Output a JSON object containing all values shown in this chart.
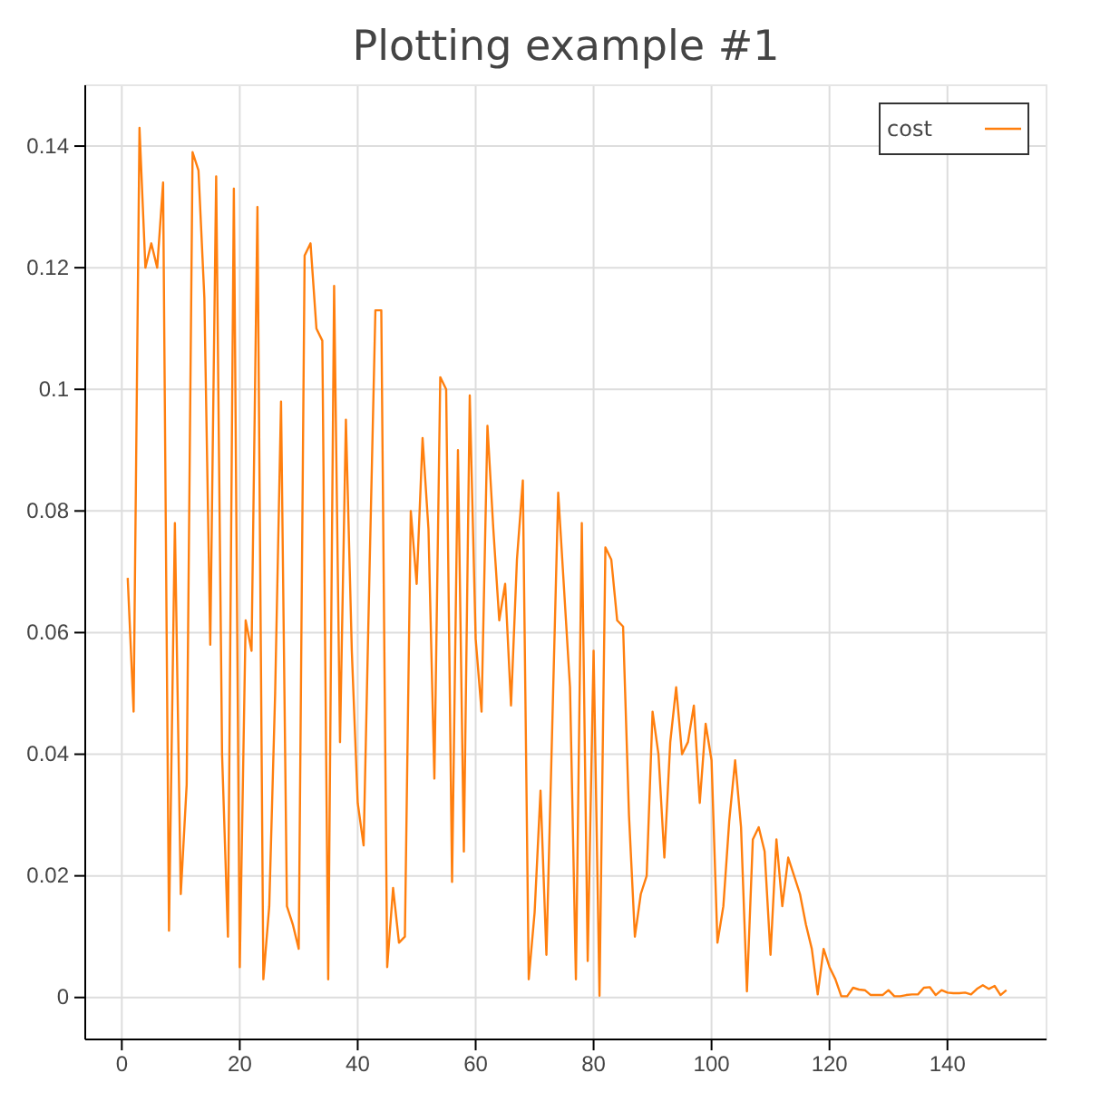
{
  "chart_data": {
    "type": "line",
    "title": "Plotting example #1",
    "x": [
      1,
      2,
      3,
      4,
      5,
      6,
      7,
      8,
      9,
      10,
      11,
      12,
      13,
      14,
      15,
      16,
      17,
      18,
      19,
      20,
      21,
      22,
      23,
      24,
      25,
      26,
      27,
      28,
      29,
      30,
      31,
      32,
      33,
      34,
      35,
      36,
      37,
      38,
      39,
      40,
      41,
      42,
      43,
      44,
      45,
      46,
      47,
      48,
      49,
      50,
      51,
      52,
      53,
      54,
      55,
      56,
      57,
      58,
      59,
      60,
      61,
      62,
      63,
      64,
      65,
      66,
      67,
      68,
      69,
      70,
      71,
      72,
      73,
      74,
      75,
      76,
      77,
      78,
      79,
      80,
      81,
      82,
      83,
      84,
      85,
      86,
      87,
      88,
      89,
      90,
      91,
      92,
      93,
      94,
      95,
      96,
      97,
      98,
      99,
      100,
      101,
      102,
      103,
      104,
      105,
      106,
      107,
      108,
      109,
      110,
      111,
      112,
      113,
      114,
      115,
      116,
      117,
      118,
      119,
      120,
      121,
      122,
      123,
      124,
      125,
      126,
      127,
      128,
      129,
      130,
      131,
      132,
      133,
      134,
      135,
      136,
      137,
      138,
      139,
      140,
      141,
      142,
      143,
      144,
      145,
      146,
      147,
      148,
      149,
      150
    ],
    "series": [
      {
        "name": "cost",
        "color": "#ff7f0e",
        "values": [
          0.069,
          0.047,
          0.143,
          0.12,
          0.124,
          0.12,
          0.134,
          0.011,
          0.078,
          0.017,
          0.035,
          0.139,
          0.136,
          0.115,
          0.058,
          0.135,
          0.04,
          0.01,
          0.133,
          0.005,
          0.062,
          0.057,
          0.13,
          0.003,
          0.015,
          0.05,
          0.098,
          0.015,
          0.012,
          0.008,
          0.122,
          0.124,
          0.11,
          0.108,
          0.003,
          0.117,
          0.042,
          0.095,
          0.057,
          0.032,
          0.025,
          0.07,
          0.113,
          0.113,
          0.005,
          0.018,
          0.009,
          0.01,
          0.08,
          0.068,
          0.092,
          0.077,
          0.036,
          0.102,
          0.1,
          0.019,
          0.09,
          0.024,
          0.099,
          0.059,
          0.047,
          0.094,
          0.077,
          0.062,
          0.068,
          0.048,
          0.072,
          0.085,
          0.003,
          0.014,
          0.034,
          0.007,
          0.045,
          0.083,
          0.067,
          0.051,
          0.003,
          0.078,
          0.006,
          0.057,
          0.0003,
          0.074,
          0.072,
          0.062,
          0.061,
          0.03,
          0.01,
          0.017,
          0.02,
          0.047,
          0.04,
          0.023,
          0.042,
          0.051,
          0.04,
          0.042,
          0.048,
          0.032,
          0.045,
          0.039,
          0.009,
          0.015,
          0.029,
          0.039,
          0.028,
          0.001,
          0.026,
          0.028,
          0.024,
          0.007,
          0.026,
          0.015,
          0.023,
          0.02,
          0.017,
          0.012,
          0.008,
          0.0005,
          0.008,
          0.005,
          0.003,
          0.0002,
          0.0002,
          0.0016,
          0.0013,
          0.0012,
          0.0004,
          0.0004,
          0.0004,
          0.0012,
          0.0002,
          0.0002,
          0.0004,
          0.0005,
          0.0005,
          0.0016,
          0.0017,
          0.0004,
          0.0012,
          0.0008,
          0.0007,
          0.0007,
          0.0008,
          0.0005,
          0.0014,
          0.002,
          0.0014,
          0.0019,
          0.0004,
          0.0012
        ]
      }
    ],
    "xlim": [
      -6.2,
      156.8
    ],
    "ylim": [
      -0.0069,
      0.15
    ],
    "xticks": [
      0,
      20,
      40,
      60,
      80,
      100,
      120,
      140
    ],
    "yticks": [
      0,
      0.02,
      0.04,
      0.06,
      0.08,
      0.1,
      0.12,
      0.14
    ],
    "grid": true,
    "legend": "top right"
  }
}
